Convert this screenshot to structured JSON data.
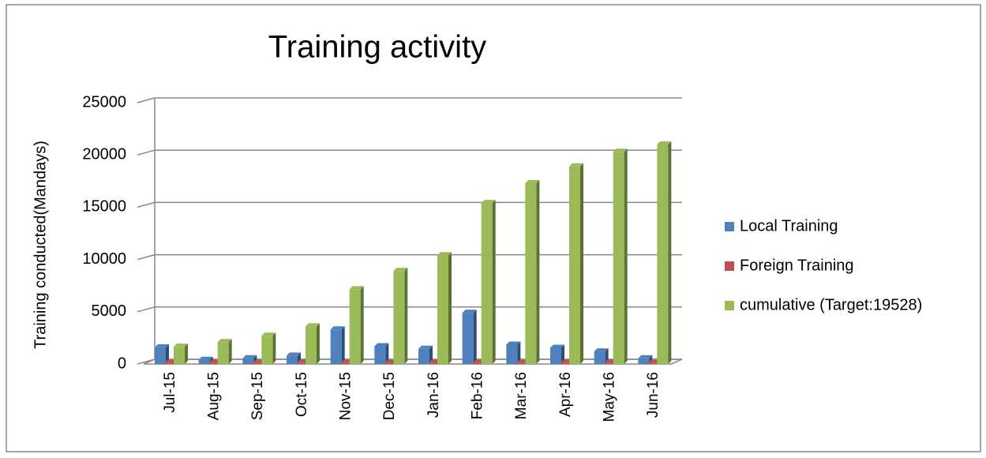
{
  "chart_data": {
    "type": "bar",
    "title": "Training activity",
    "y_label": "Training conducted(Mandays)",
    "categories": [
      "Jul-15",
      "Aug-15",
      "Sep-15",
      "Oct-15",
      "Nov-15",
      "Dec-15",
      "Jan-16",
      "Feb-16",
      "Mar-16",
      "Apr-16",
      "May-16",
      "Jun-16"
    ],
    "series": [
      {
        "name": "Local Training",
        "color": "#4f81bd",
        "values": [
          1600,
          400,
          550,
          800,
          3300,
          1700,
          1450,
          4900,
          1850,
          1550,
          1200,
          550
        ]
      },
      {
        "name": "Foreign Training",
        "color": "#c0504d",
        "values": [
          100,
          100,
          100,
          100,
          100,
          100,
          100,
          100,
          100,
          100,
          100,
          100
        ]
      },
      {
        "name": "cumulative (Target:19528)",
        "color": "#9bbb59",
        "values": [
          1650,
          2100,
          2700,
          3600,
          7150,
          8900,
          10400,
          15400,
          17300,
          18900,
          20300,
          21000
        ]
      }
    ],
    "ylim": [
      0,
      25000
    ],
    "yticks": [
      0,
      5000,
      10000,
      15000,
      20000,
      25000
    ],
    "grid": true,
    "legend": "right"
  }
}
